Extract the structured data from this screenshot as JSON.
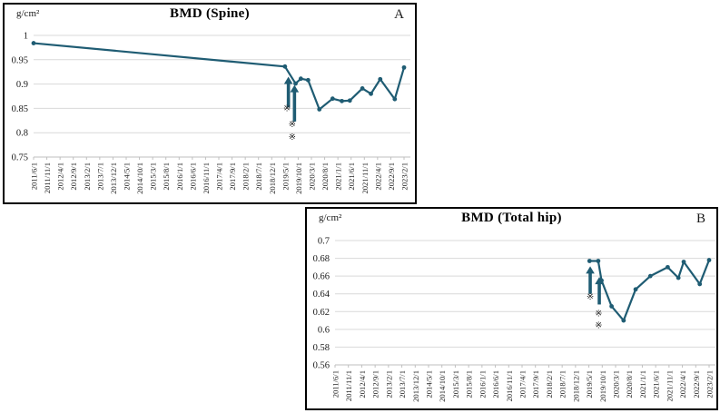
{
  "chart_data": [
    {
      "id": "spine",
      "type": "line",
      "title": "BMD (Spine)",
      "panel_label": "A",
      "unit_label": "g/cm²",
      "series_color": "#1f5c73",
      "grid_color": "#d9d9d9",
      "axis_color": "#bfbfbf",
      "ylim": [
        0.75,
        1.0
      ],
      "y_ticks": [
        {
          "label": "1",
          "value": 1.0
        },
        {
          "label": "0.95",
          "value": 0.95
        },
        {
          "label": "0.9",
          "value": 0.9
        },
        {
          "label": "0.85",
          "value": 0.85
        },
        {
          "label": "0.8",
          "value": 0.8
        },
        {
          "label": "0.75",
          "value": 0.75
        }
      ],
      "categories": [
        "2011/6/1",
        "2011/11/1",
        "2012/4/1",
        "2012/9/1",
        "2013/2/1",
        "2013/7/1",
        "2013/12/1",
        "2014/5/1",
        "2014/10/1",
        "2015/3/1",
        "2015/8/1",
        "2016/1/1",
        "2016/6/1",
        "2016/11/1",
        "2017/4/1",
        "2017/9/1",
        "2018/2/1",
        "2018/7/1",
        "2018/12/1",
        "2019/5/1",
        "2019/10/1",
        "2020/3/1",
        "2020/8/1",
        "2021/1/1",
        "2021/6/1",
        "2021/11/1",
        "2022/4/1",
        "2022/9/1",
        "2023/2/1"
      ],
      "points": [
        {
          "x": 0,
          "y": 0.984
        },
        {
          "x": 19,
          "y": 0.936
        },
        {
          "x": 19.8,
          "y": 0.901
        },
        {
          "x": 20.2,
          "y": 0.911
        },
        {
          "x": 20.75,
          "y": 0.908
        },
        {
          "x": 21.6,
          "y": 0.848
        },
        {
          "x": 22.6,
          "y": 0.87
        },
        {
          "x": 23.3,
          "y": 0.865
        },
        {
          "x": 23.9,
          "y": 0.866
        },
        {
          "x": 24.85,
          "y": 0.891
        },
        {
          "x": 25.5,
          "y": 0.88
        },
        {
          "x": 26.2,
          "y": 0.91
        },
        {
          "x": 27.3,
          "y": 0.869
        },
        {
          "x": 28,
          "y": 0.934
        }
      ],
      "arrows": [
        {
          "x": 19.26,
          "y_from": 0.852,
          "y_to": 0.915
        },
        {
          "x": 19.72,
          "y_from": 0.823,
          "y_to": 0.898
        }
      ],
      "reference_marks": [
        {
          "x": 19.15,
          "y": 0.851,
          "symbol": "※"
        },
        {
          "x": 19.55,
          "y": 0.818,
          "symbol": "※"
        },
        {
          "x": 19.55,
          "y": 0.792,
          "symbol": "※"
        }
      ]
    },
    {
      "id": "total-hip",
      "type": "line",
      "title": "BMD (Total hip)",
      "panel_label": "B",
      "unit_label": "g/cm²",
      "series_color": "#1f5c73",
      "grid_color": "#d9d9d9",
      "axis_color": "#bfbfbf",
      "ylim": [
        0.56,
        0.7
      ],
      "y_ticks": [
        {
          "label": "0.7",
          "value": 0.7
        },
        {
          "label": "0.68",
          "value": 0.68
        },
        {
          "label": "0.66",
          "value": 0.66
        },
        {
          "label": "0.64",
          "value": 0.64
        },
        {
          "label": "0.62",
          "value": 0.62
        },
        {
          "label": "0.6",
          "value": 0.6
        },
        {
          "label": "0.58",
          "value": 0.58
        },
        {
          "label": "0.56",
          "value": 0.56
        }
      ],
      "categories": [
        "2011/6/1",
        "2011/11/1",
        "2012/4/1",
        "2012/9/1",
        "2013/2/1",
        "2013/7/1",
        "2013/12/1",
        "2014/5/1",
        "2014/10/1",
        "2015/3/1",
        "2015/8/1",
        "2016/1/1",
        "2016/6/1",
        "2016/11/1",
        "2017/4/1",
        "2017/9/1",
        "2018/2/1",
        "2018/7/1",
        "2018/12/1",
        "2019/5/1",
        "2019/10/1",
        "2020/3/1",
        "2020/8/1",
        "2021/1/1",
        "2021/6/1",
        "2021/11/1",
        "2022/4/1",
        "2022/9/1",
        "2023/2/1"
      ],
      "points": [
        {
          "x": 19.05,
          "y": 0.677
        },
        {
          "x": 19.7,
          "y": 0.677
        },
        {
          "x": 19.95,
          "y": 0.655
        },
        {
          "x": 20.7,
          "y": 0.626
        },
        {
          "x": 21.6,
          "y": 0.61
        },
        {
          "x": 22.5,
          "y": 0.645
        },
        {
          "x": 23.6,
          "y": 0.66
        },
        {
          "x": 24.9,
          "y": 0.67
        },
        {
          "x": 25.7,
          "y": 0.658
        },
        {
          "x": 26.1,
          "y": 0.676
        },
        {
          "x": 27.3,
          "y": 0.651
        },
        {
          "x": 28,
          "y": 0.678
        }
      ],
      "arrows": [
        {
          "x": 19.1,
          "y_from": 0.64,
          "y_to": 0.671
        },
        {
          "x": 19.78,
          "y_from": 0.628,
          "y_to": 0.659
        }
      ],
      "reference_marks": [
        {
          "x": 19.1,
          "y": 0.637,
          "symbol": "※"
        },
        {
          "x": 19.73,
          "y": 0.618,
          "symbol": "※"
        },
        {
          "x": 19.73,
          "y": 0.605,
          "symbol": "※"
        }
      ]
    }
  ]
}
